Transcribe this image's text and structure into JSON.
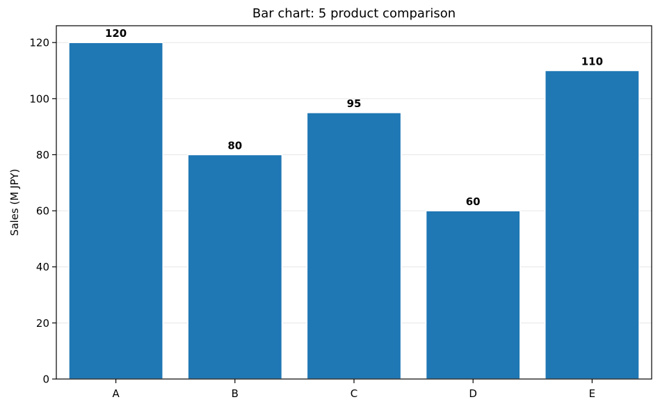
{
  "chart_data": {
    "type": "bar",
    "title": "Bar chart: 5 product comparison",
    "xlabel": "",
    "ylabel": "Sales (M JPY)",
    "categories": [
      "A",
      "B",
      "C",
      "D",
      "E"
    ],
    "values": [
      120,
      80,
      95,
      60,
      110
    ],
    "data_labels": [
      "120",
      "80",
      "95",
      "60",
      "110"
    ],
    "ylim": [
      0,
      126
    ],
    "yticks": [
      0,
      20,
      40,
      60,
      80,
      100,
      120
    ],
    "grid": "horizontal",
    "legend": "none",
    "colors": {
      "bar": "#1f77b4",
      "bar_edge": "#ffffff",
      "grid": "#e6e6e6",
      "axis": "#000000",
      "text": "#000000"
    }
  }
}
